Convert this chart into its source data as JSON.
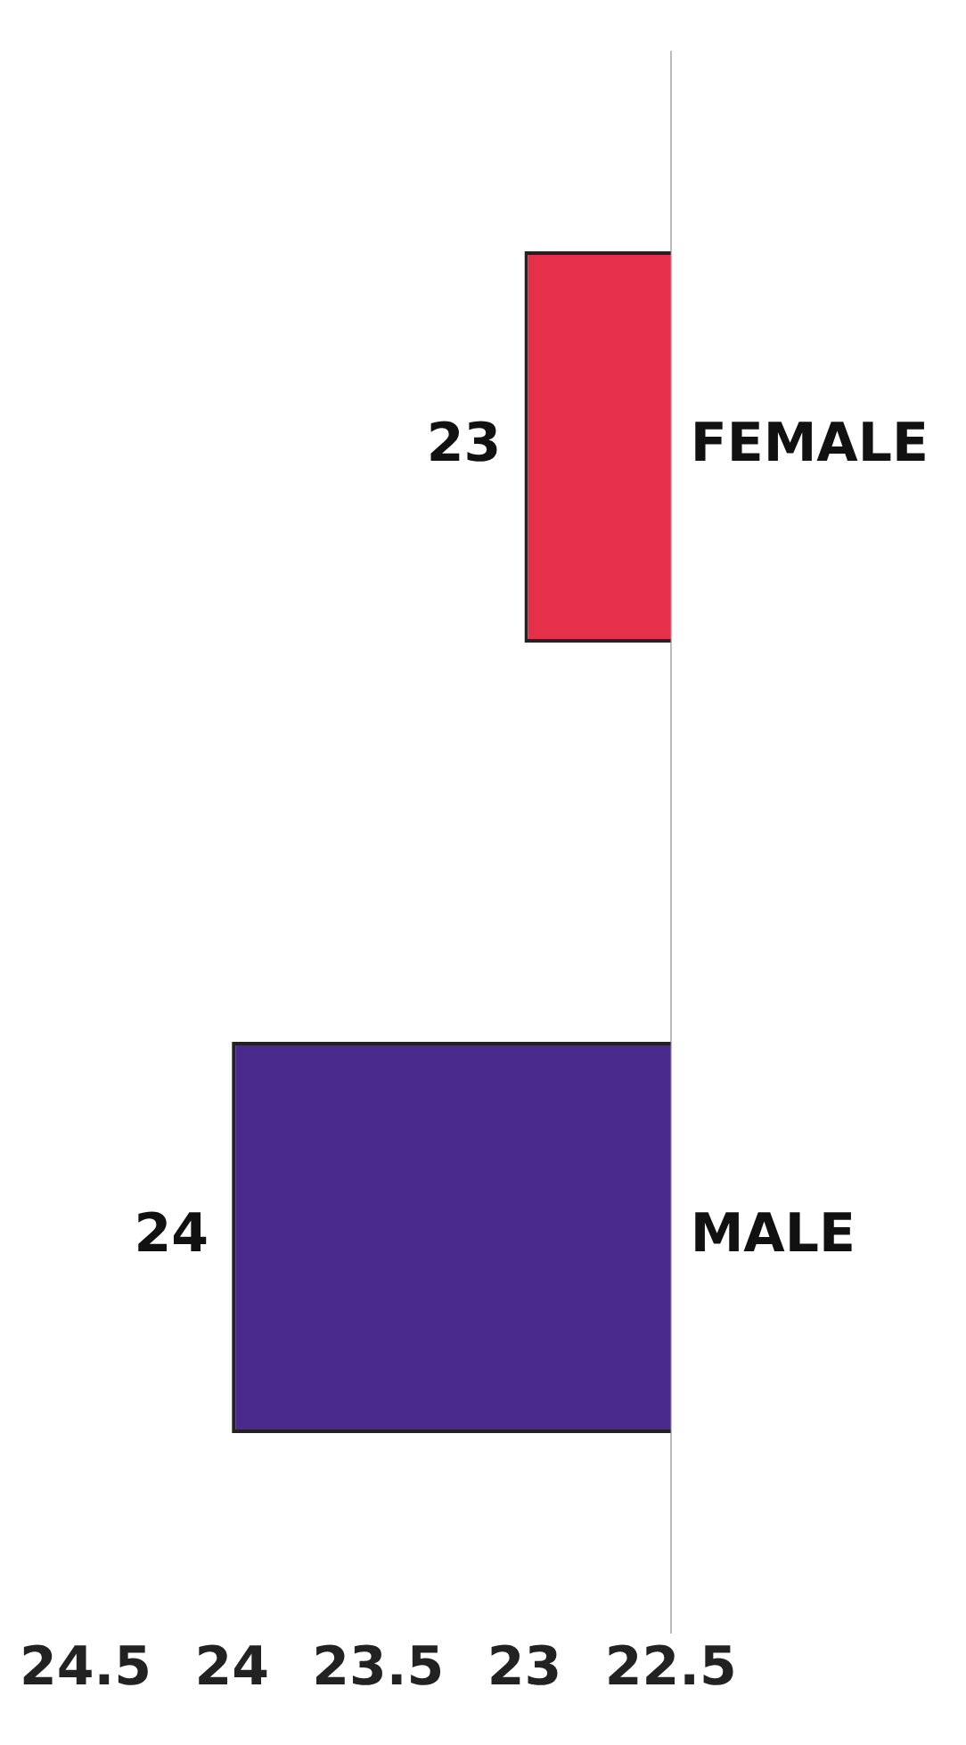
{
  "chart_data": {
    "type": "bar",
    "orientation": "horizontal",
    "categories": [
      "FEMALE",
      "MALE"
    ],
    "values": [
      23,
      24
    ],
    "colors": [
      "#e6304a",
      "#4a2a8c"
    ],
    "xlim": [
      24.5,
      22.5
    ],
    "xticks": [
      24.5,
      24,
      23.5,
      23,
      22.5
    ],
    "data_labels": true,
    "grid": false,
    "legend": false
  }
}
